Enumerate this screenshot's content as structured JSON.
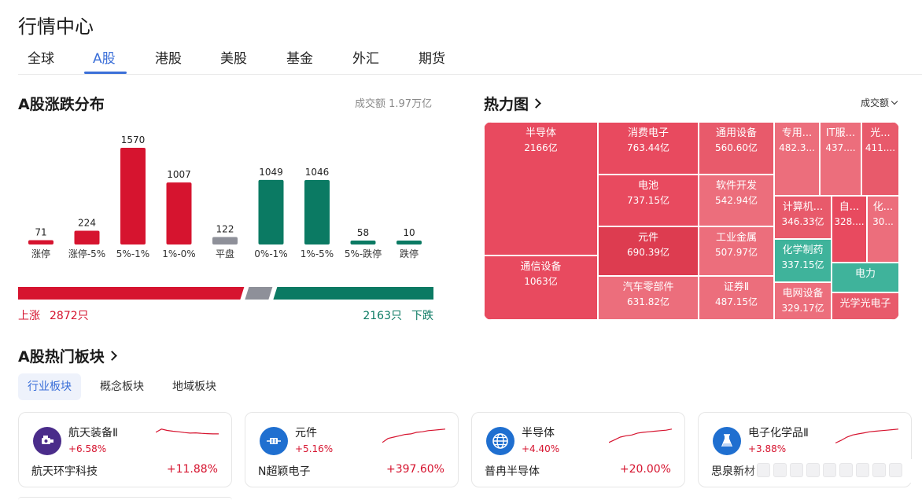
{
  "page": {
    "title": "行情中心"
  },
  "tabs": [
    {
      "label": "全球",
      "active": false
    },
    {
      "label": "A股",
      "active": true
    },
    {
      "label": "港股",
      "active": false
    },
    {
      "label": "美股",
      "active": false
    },
    {
      "label": "基金",
      "active": false
    },
    {
      "label": "外汇",
      "active": false
    },
    {
      "label": "期货",
      "active": false
    }
  ],
  "distribution": {
    "title": "A股涨跌分布",
    "turnover": "成交额 1.97万亿",
    "up_label": "上涨",
    "up_count": "2872只",
    "down_label": "下跌",
    "down_count": "2163只",
    "flat_count": 122,
    "colors": {
      "up": "#d6142f",
      "flat": "#8e9099",
      "down": "#0b7a63"
    }
  },
  "chart_data": {
    "type": "bar",
    "categories": [
      "涨停",
      "涨停-5%",
      "5%-1%",
      "1%-0%",
      "平盘",
      "0%-1%",
      "1%-5%",
      "5%-跌停",
      "跌停"
    ],
    "values": [
      71,
      224,
      1570,
      1007,
      122,
      1049,
      1046,
      58,
      10
    ],
    "colors": [
      "#d6142f",
      "#d6142f",
      "#d6142f",
      "#d6142f",
      "#8e9099",
      "#0b7a63",
      "#0b7a63",
      "#0b7a63",
      "#0b7a63"
    ],
    "title": "A股涨跌分布",
    "xlabel": "",
    "ylabel": "",
    "ylim": [
      0,
      1570
    ],
    "grid": false
  },
  "heatmap": {
    "title": "热力图",
    "sort_label": "成交额",
    "cells": [
      {
        "name": "半导体",
        "value": "2166亿",
        "color": "#e84a5f"
      },
      {
        "name": "通信设备",
        "value": "1063亿",
        "color": "#e84a5f"
      },
      {
        "name": "消费电子",
        "value": "763.44亿",
        "color": "#e84a5f"
      },
      {
        "name": "电池",
        "value": "737.15亿",
        "color": "#e84a5f"
      },
      {
        "name": "元件",
        "value": "690.39亿",
        "color": "#dd3c50"
      },
      {
        "name": "汽车零部件",
        "value": "631.82亿",
        "color": "#ec6e7c"
      },
      {
        "name": "通用设备",
        "value": "560.60亿",
        "color": "#e85a6b"
      },
      {
        "name": "软件开发",
        "value": "542.94亿",
        "color": "#ec6e7c"
      },
      {
        "name": "工业金属",
        "value": "507.97亿",
        "color": "#ec6e7c"
      },
      {
        "name": "证券Ⅱ",
        "value": "487.15亿",
        "color": "#ec6e7c"
      },
      {
        "name": "专用...",
        "value": "482.3...",
        "color": "#ec6e7c"
      },
      {
        "name": "IT服...",
        "value": "437....",
        "color": "#ec6e7c"
      },
      {
        "name": "光...",
        "value": "411....",
        "color": "#e85a6b"
      },
      {
        "name": "计算机...",
        "value": "346.33亿",
        "color": "#e85a6b"
      },
      {
        "name": "自...",
        "value": "328....",
        "color": "#e84a5f"
      },
      {
        "name": "化...",
        "value": "30...",
        "color": "#ec6e7c"
      },
      {
        "name": "化学制药",
        "value": "337.15亿",
        "color": "#3fb39b"
      },
      {
        "name": "电力",
        "value": "",
        "color": "#3fb39b"
      },
      {
        "name": "电网设备",
        "value": "329.17亿",
        "color": "#ec6e7c"
      },
      {
        "name": "光学光电子",
        "value": "",
        "color": "#e85a6b"
      }
    ]
  },
  "hot_sectors": {
    "title": "A股热门板块",
    "subtabs": [
      {
        "label": "行业板块",
        "active": true
      },
      {
        "label": "概念板块",
        "active": false
      },
      {
        "label": "地域板块",
        "active": false
      }
    ],
    "cards": [
      {
        "name": "航天装备Ⅱ",
        "change": "+6.58%",
        "icon": "rocket-engine-icon",
        "icon_bg": "#4a2c8a",
        "stock": "航天环宇科技",
        "stock_change": "+11.88%",
        "spark": [
          0.32,
          0.2,
          0.25,
          0.28,
          0.3,
          0.33,
          0.35,
          0.34,
          0.36,
          0.37,
          0.38,
          0.38
        ]
      },
      {
        "name": "元件",
        "change": "+5.16%",
        "icon": "component-icon",
        "icon_bg": "#1f6fd0",
        "stock": "N超颖电子",
        "stock_change": "+397.60%",
        "spark": [
          0.7,
          0.55,
          0.5,
          0.45,
          0.4,
          0.38,
          0.32,
          0.3,
          0.26,
          0.24,
          0.22,
          0.2
        ]
      },
      {
        "name": "半导体",
        "change": "+4.40%",
        "icon": "globe-icon",
        "icon_bg": "#1f6fd0",
        "stock": "普冉半导体",
        "stock_change": "+20.00%",
        "spark": [
          0.7,
          0.6,
          0.5,
          0.45,
          0.42,
          0.35,
          0.32,
          0.3,
          0.28,
          0.26,
          0.24,
          0.2
        ]
      },
      {
        "name": "电子化学品Ⅱ",
        "change": "+3.88%",
        "icon": "beaker-icon",
        "icon_bg": "#1f6fd0",
        "stock": "思泉新材",
        "stock_change": "",
        "spark": [
          0.72,
          0.62,
          0.5,
          0.42,
          0.38,
          0.34,
          0.3,
          0.28,
          0.26,
          0.24,
          0.22,
          0.2
        ]
      }
    ]
  }
}
